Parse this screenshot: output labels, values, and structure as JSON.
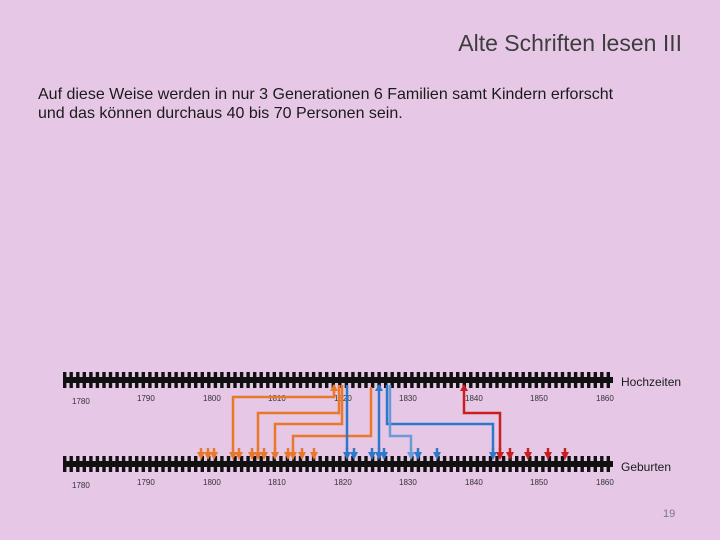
{
  "slide": {
    "title": "Alte Schriften lesen III",
    "text_lines": [
      "Auf diese Weise werden in nur 3 Generationen 6 Familien samt Kindern erforscht",
      "und das können durchaus 40 bis 70 Personen sein."
    ],
    "page_number": "19"
  },
  "timeline": {
    "top_label": "Hochzeiten",
    "bottom_label": "Geburten",
    "top_ticks": [
      "1780",
      "1790",
      "1800",
      "1810",
      "1820",
      "1830",
      "1840",
      "1850",
      "1860"
    ],
    "bottom_ticks": [
      "1780",
      "1790",
      "1800",
      "1810",
      "1820",
      "1830",
      "1840",
      "1850",
      "1860"
    ],
    "colors": {
      "orange": "#e8782a",
      "blue": "#2e78c8",
      "light_blue": "#6a9ad8",
      "red": "#c81e1e",
      "ruler": "#111111"
    }
  }
}
